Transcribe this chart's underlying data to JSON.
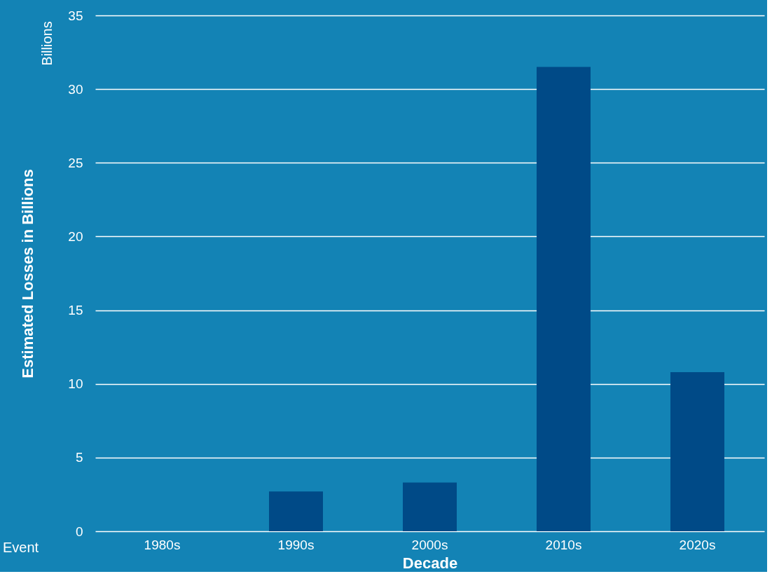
{
  "chart_data": {
    "type": "bar",
    "categories": [
      "1980s",
      "1990s",
      "2000s",
      "2010s",
      "2020s"
    ],
    "values": [
      0,
      2.7,
      3.3,
      31.5,
      10.8
    ],
    "color": "#004a87",
    "xlabel": "Decade",
    "ylabel": "Estimated Losses in Billions",
    "ylim": [
      0,
      35
    ],
    "yticks": [
      0,
      5,
      10,
      15,
      20,
      25,
      30,
      35
    ],
    "grid": "y",
    "annotations": [
      "Billions",
      "Event"
    ]
  }
}
